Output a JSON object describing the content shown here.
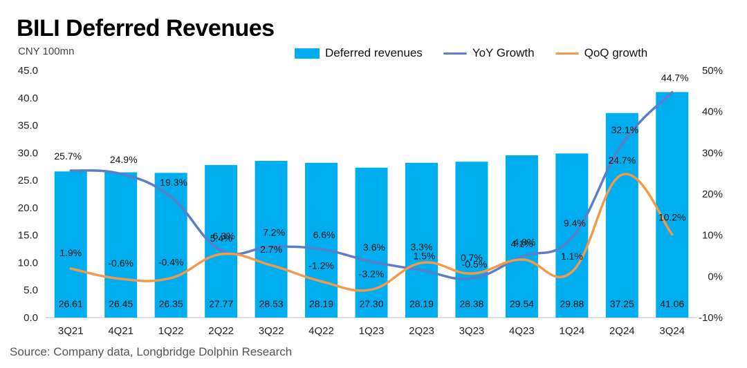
{
  "header": {
    "title": "BILI Deferred Revenues",
    "unit_label": "CNY 100mn",
    "source": "Source: Company data, Longbridge Dolphin Research"
  },
  "colors": {
    "bar": "#00aeef",
    "yoy_line": "#5b7ec8",
    "qoq_line": "#f39a4a"
  },
  "chart_data": {
    "type": "bar",
    "title": "BILI Deferred Revenues",
    "categories": [
      "3Q21",
      "4Q21",
      "1Q22",
      "2Q22",
      "3Q22",
      "4Q22",
      "1Q23",
      "2Q23",
      "3Q23",
      "4Q23",
      "1Q24",
      "2Q24",
      "3Q24"
    ],
    "series": [
      {
        "name": "Deferred revenues",
        "type": "bar",
        "axis": "left",
        "values": [
          26.61,
          26.45,
          26.35,
          27.77,
          28.53,
          28.19,
          27.3,
          28.19,
          28.38,
          29.54,
          29.88,
          37.25,
          41.06
        ],
        "labels": [
          "26.61",
          "26.45",
          "26.35",
          "27.77",
          "28.53",
          "28.19",
          "27.30",
          "28.19",
          "28.38",
          "29.54",
          "29.88",
          "37.25",
          "41.06"
        ]
      },
      {
        "name": "YoY Growth",
        "type": "line",
        "axis": "right",
        "values": [
          25.7,
          24.9,
          19.3,
          6.3,
          7.2,
          6.6,
          3.6,
          1.5,
          -0.5,
          4.8,
          9.4,
          32.1,
          44.7
        ],
        "labels": [
          "25.7%",
          "24.9%",
          "19.3%",
          "6.3%",
          "7.2%",
          "6.6%",
          "3.6%",
          "1.5%",
          "-0.5%",
          "4.8%",
          "9.4%",
          "32.1%",
          "44.7%"
        ]
      },
      {
        "name": "QoQ growth",
        "type": "line",
        "axis": "right",
        "values": [
          1.9,
          -0.6,
          -0.4,
          5.4,
          2.7,
          -1.2,
          -3.2,
          3.3,
          0.7,
          4.1,
          1.1,
          24.7,
          10.2
        ],
        "labels": [
          "1.9%",
          "-0.6%",
          "-0.4%",
          "5.4%",
          "2.7%",
          "-1.2%",
          "-3.2%",
          "3.3%",
          "0.7%",
          "4.1%",
          "1.1%",
          "24.7%",
          "10.2%"
        ]
      }
    ],
    "y_left": {
      "ylim": [
        0,
        45
      ],
      "ticks": [
        "0.0",
        "5.0",
        "10.0",
        "15.0",
        "20.0",
        "25.0",
        "30.0",
        "35.0",
        "40.0",
        "45.0"
      ]
    },
    "y_right": {
      "ylim": [
        -10,
        50
      ],
      "ticks": [
        "-10%",
        "0%",
        "10%",
        "20%",
        "30%",
        "40%",
        "50%"
      ]
    },
    "grid": false,
    "legend_position": "top"
  }
}
